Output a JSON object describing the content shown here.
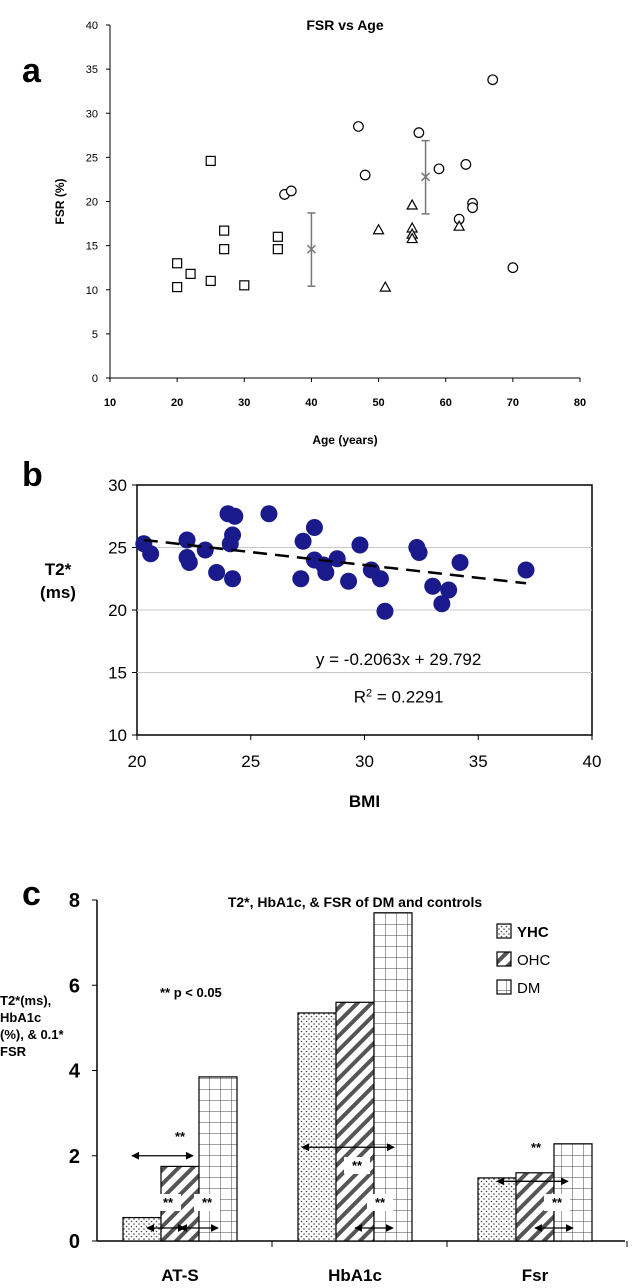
{
  "panel_letters": [
    "a",
    "b",
    "c"
  ],
  "charts": [
    {
      "id": "a",
      "chart_data": {
        "type": "scatter",
        "title": "FSR vs Age",
        "xlabel": "Age (years)",
        "ylabel": "FSR (%)",
        "xlim": [
          10,
          80
        ],
        "ylim": [
          0,
          40
        ],
        "xticks": [
          10,
          20,
          30,
          40,
          50,
          60,
          70,
          80
        ],
        "yticks": [
          0,
          5,
          10,
          15,
          20,
          25,
          30,
          35,
          40
        ],
        "grid": false,
        "series": [
          {
            "marker": "square",
            "points": [
              [
                20,
                13.0
              ],
              [
                20,
                10.3
              ],
              [
                22,
                11.8
              ],
              [
                25,
                24.6
              ],
              [
                25,
                11.0
              ],
              [
                27,
                16.7
              ],
              [
                27,
                14.6
              ],
              [
                30,
                10.5
              ],
              [
                35,
                16.0
              ],
              [
                35,
                14.6
              ]
            ]
          },
          {
            "marker": "circle",
            "points": [
              [
                36,
                20.8
              ],
              [
                37,
                21.2
              ],
              [
                47,
                28.5
              ],
              [
                48,
                23.0
              ],
              [
                56,
                27.8
              ],
              [
                59,
                23.7
              ],
              [
                62,
                18.0
              ],
              [
                63,
                24.2
              ],
              [
                64,
                19.8
              ],
              [
                64,
                19.3
              ],
              [
                67,
                33.8
              ],
              [
                70,
                12.5
              ]
            ]
          },
          {
            "marker": "triangle",
            "points": [
              [
                50,
                16.8
              ],
              [
                51,
                10.3
              ],
              [
                55,
                19.6
              ],
              [
                55,
                17.0
              ],
              [
                55,
                16.3
              ],
              [
                55,
                15.8
              ],
              [
                62,
                17.2
              ]
            ]
          }
        ],
        "errorbars": [
          {
            "x": 40,
            "y": 14.6,
            "low": 10.4,
            "high": 18.7
          },
          {
            "x": 57,
            "y": 22.8,
            "low": 18.6,
            "high": 26.9
          }
        ]
      }
    },
    {
      "id": "b",
      "chart_data": {
        "type": "scatter",
        "title": "",
        "xlabel": "BMI",
        "ylabel": "T2*\n(ms)",
        "ylabel_lines": [
          "T2*",
          "(ms)"
        ],
        "xlim": [
          20,
          40
        ],
        "ylim": [
          10,
          30
        ],
        "xticks": [
          20,
          25,
          30,
          35,
          40
        ],
        "yticks": [
          10,
          15,
          20,
          25,
          30
        ],
        "grid": true,
        "marker_color": "#1a1a8c",
        "points": [
          [
            20.3,
            25.3
          ],
          [
            20.6,
            24.5
          ],
          [
            22.2,
            25.6
          ],
          [
            22.2,
            24.2
          ],
          [
            22.3,
            23.8
          ],
          [
            23.0,
            24.8
          ],
          [
            23.5,
            23.0
          ],
          [
            24.0,
            27.7
          ],
          [
            24.1,
            25.3
          ],
          [
            24.2,
            26.0
          ],
          [
            24.3,
            27.5
          ],
          [
            24.2,
            22.5
          ],
          [
            25.8,
            27.7
          ],
          [
            27.2,
            22.5
          ],
          [
            27.3,
            25.5
          ],
          [
            27.8,
            26.6
          ],
          [
            27.8,
            24.0
          ],
          [
            28.2,
            23.6
          ],
          [
            28.3,
            23.0
          ],
          [
            28.8,
            24.1
          ],
          [
            29.3,
            22.3
          ],
          [
            29.8,
            25.2
          ],
          [
            30.3,
            23.2
          ],
          [
            30.7,
            22.5
          ],
          [
            30.9,
            19.9
          ],
          [
            32.3,
            25.0
          ],
          [
            32.4,
            24.6
          ],
          [
            33.0,
            21.9
          ],
          [
            33.4,
            20.5
          ],
          [
            33.7,
            21.6
          ],
          [
            34.2,
            23.8
          ],
          [
            37.1,
            23.2
          ]
        ],
        "trendline": {
          "slope": -0.2063,
          "intercept": 29.792,
          "x_range": [
            20.3,
            37.1
          ]
        },
        "equation": "y = -0.2063x + 29.792",
        "r2_prefix": "R",
        "r2_sup": "2",
        "r2_suffix": " = 0.2291"
      }
    },
    {
      "id": "c",
      "chart_data": {
        "type": "bar",
        "title": "T2*, HbA1c, & FSR of DM and controls",
        "ylabel_lines": [
          "T2*(ms),",
          "HbA1c",
          "(%), & 0.1*",
          "FSR"
        ],
        "categories": [
          "AT-S",
          "HbA1c",
          "Fsr"
        ],
        "ylim": [
          0,
          8
        ],
        "yticks": [
          0,
          2,
          4,
          6,
          8
        ],
        "legend_position": "right",
        "series": [
          {
            "name": "YHC",
            "pattern": "dots",
            "values": [
              0.55,
              5.35,
              1.48
            ]
          },
          {
            "name": "OHC",
            "pattern": "diagonal",
            "values": [
              1.75,
              5.6,
              1.6
            ]
          },
          {
            "name": "DM",
            "pattern": "grid",
            "values": [
              3.85,
              7.7,
              2.28
            ]
          }
        ],
        "significance_note": "** p < 0.05",
        "significance_mark": "**"
      }
    }
  ]
}
